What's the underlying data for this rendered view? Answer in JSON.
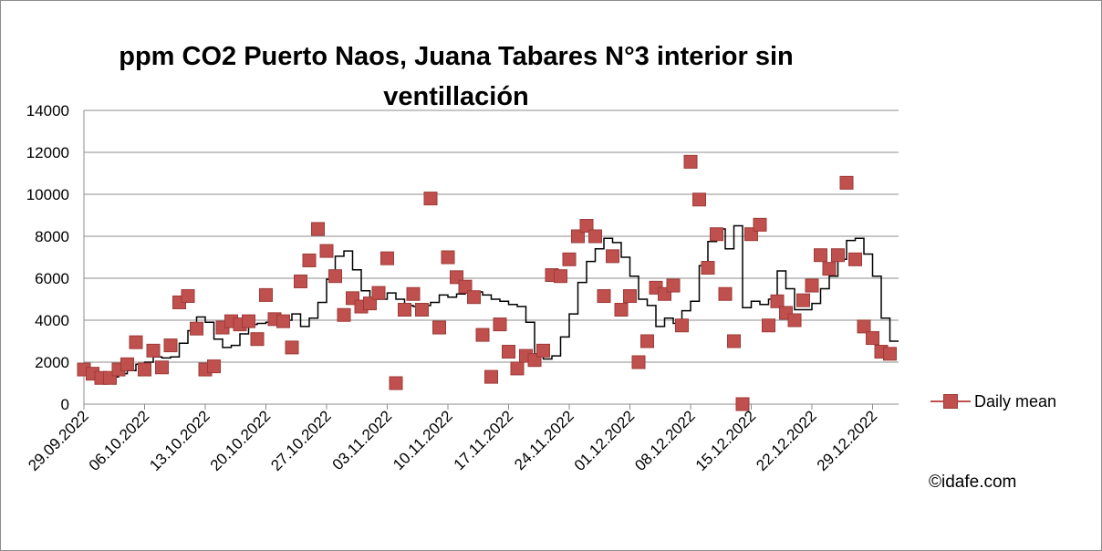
{
  "chart_data": {
    "type": "scatter",
    "title": "ppm CO2 Puerto Naos, Juana Tabares N°3 interior sin ventillación",
    "xlabel": "",
    "ylabel": "",
    "ylim": [
      0,
      14000
    ],
    "yticks": [
      0,
      2000,
      4000,
      6000,
      8000,
      10000,
      12000,
      14000
    ],
    "xlim": [
      "2022-09-29",
      "2023-01-01"
    ],
    "xticks": [
      "29.09.2022",
      "06.10.2022",
      "13.10.2022",
      "20.10.2022",
      "27.10.2022",
      "03.11.2022",
      "10.11.2022",
      "17.11.2022",
      "24.11.2022",
      "01.12.2022",
      "08.12.2022",
      "15.12.2022",
      "22.12.2022",
      "29.12.2022"
    ],
    "grid": "horizontal",
    "legend_position": "right",
    "series": [
      {
        "name": "Daily mean",
        "color": "#c0504d",
        "marker": "square",
        "points": [
          [
            "2022-09-29",
            1650
          ],
          [
            "2022-09-30",
            1450
          ],
          [
            "2022-10-01",
            1250
          ],
          [
            "2022-10-02",
            1250
          ],
          [
            "2022-10-03",
            1650
          ],
          [
            "2022-10-04",
            1900
          ],
          [
            "2022-10-05",
            2950
          ],
          [
            "2022-10-06",
            1650
          ],
          [
            "2022-10-07",
            2550
          ],
          [
            "2022-10-08",
            1750
          ],
          [
            "2022-10-09",
            2800
          ],
          [
            "2022-10-10",
            4850
          ],
          [
            "2022-10-11",
            5150
          ],
          [
            "2022-10-12",
            3600
          ],
          [
            "2022-10-13",
            1650
          ],
          [
            "2022-10-14",
            1800
          ],
          [
            "2022-10-15",
            3650
          ],
          [
            "2022-10-16",
            3950
          ],
          [
            "2022-10-17",
            3800
          ],
          [
            "2022-10-18",
            3950
          ],
          [
            "2022-10-19",
            3100
          ],
          [
            "2022-10-20",
            5200
          ],
          [
            "2022-10-21",
            4050
          ],
          [
            "2022-10-22",
            3950
          ],
          [
            "2022-10-23",
            2700
          ],
          [
            "2022-10-24",
            5850
          ],
          [
            "2022-10-25",
            6850
          ],
          [
            "2022-10-26",
            8350
          ],
          [
            "2022-10-27",
            7300
          ],
          [
            "2022-10-28",
            6100
          ],
          [
            "2022-10-29",
            4250
          ],
          [
            "2022-10-30",
            5050
          ],
          [
            "2022-10-31",
            4650
          ],
          [
            "2022-11-01",
            4800
          ],
          [
            "2022-11-02",
            5300
          ],
          [
            "2022-11-03",
            6950
          ],
          [
            "2022-11-04",
            1000
          ],
          [
            "2022-11-05",
            4500
          ],
          [
            "2022-11-06",
            5250
          ],
          [
            "2022-11-07",
            4500
          ],
          [
            "2022-11-08",
            9800
          ],
          [
            "2022-11-09",
            3650
          ],
          [
            "2022-11-10",
            7000
          ],
          [
            "2022-11-11",
            6050
          ],
          [
            "2022-11-12",
            5600
          ],
          [
            "2022-11-13",
            5100
          ],
          [
            "2022-11-14",
            3300
          ],
          [
            "2022-11-15",
            1300
          ],
          [
            "2022-11-16",
            3800
          ],
          [
            "2022-11-17",
            2500
          ],
          [
            "2022-11-18",
            1700
          ],
          [
            "2022-11-19",
            2300
          ],
          [
            "2022-11-20",
            2100
          ],
          [
            "2022-11-21",
            2550
          ],
          [
            "2022-11-22",
            6150
          ],
          [
            "2022-11-23",
            6100
          ],
          [
            "2022-11-24",
            6900
          ],
          [
            "2022-11-25",
            8000
          ],
          [
            "2022-11-26",
            8500
          ],
          [
            "2022-11-27",
            8000
          ],
          [
            "2022-11-28",
            5150
          ],
          [
            "2022-11-29",
            7050
          ],
          [
            "2022-11-30",
            4500
          ],
          [
            "2022-12-01",
            5150
          ],
          [
            "2022-12-02",
            2000
          ],
          [
            "2022-12-03",
            3000
          ],
          [
            "2022-12-04",
            5550
          ],
          [
            "2022-12-05",
            5250
          ],
          [
            "2022-12-06",
            5650
          ],
          [
            "2022-12-07",
            3750
          ],
          [
            "2022-12-08",
            11550
          ],
          [
            "2022-12-09",
            9750
          ],
          [
            "2022-12-10",
            6500
          ],
          [
            "2022-12-11",
            8100
          ],
          [
            "2022-12-12",
            5250
          ],
          [
            "2022-12-13",
            3000
          ],
          [
            "2022-12-14",
            0
          ],
          [
            "2022-12-15",
            8100
          ],
          [
            "2022-12-16",
            8550
          ],
          [
            "2022-12-17",
            3750
          ],
          [
            "2022-12-18",
            4900
          ],
          [
            "2022-12-19",
            4350
          ],
          [
            "2022-12-20",
            4000
          ],
          [
            "2022-12-21",
            4950
          ],
          [
            "2022-12-22",
            5650
          ],
          [
            "2022-12-23",
            7100
          ],
          [
            "2022-12-24",
            6450
          ],
          [
            "2022-12-25",
            7100
          ],
          [
            "2022-12-26",
            10550
          ],
          [
            "2022-12-27",
            6900
          ],
          [
            "2022-12-28",
            3700
          ],
          [
            "2022-12-29",
            3150
          ],
          [
            "2022-12-30",
            2500
          ],
          [
            "2022-12-31",
            2400
          ]
        ]
      },
      {
        "name": "",
        "color": "#000000",
        "marker": "none",
        "line": "step",
        "points": [
          [
            "2022-09-29",
            1700
          ],
          [
            "2022-09-30",
            1400
          ],
          [
            "2022-10-01",
            1300
          ],
          [
            "2022-10-02",
            1300
          ],
          [
            "2022-10-03",
            1450
          ],
          [
            "2022-10-04",
            1600
          ],
          [
            "2022-10-05",
            1900
          ],
          [
            "2022-10-06",
            2000
          ],
          [
            "2022-10-07",
            2250
          ],
          [
            "2022-10-08",
            2200
          ],
          [
            "2022-10-09",
            2250
          ],
          [
            "2022-10-10",
            2900
          ],
          [
            "2022-10-11",
            3500
          ],
          [
            "2022-10-12",
            4150
          ],
          [
            "2022-10-13",
            3900
          ],
          [
            "2022-10-14",
            3100
          ],
          [
            "2022-10-15",
            2700
          ],
          [
            "2022-10-16",
            2800
          ],
          [
            "2022-10-17",
            3350
          ],
          [
            "2022-10-18",
            3800
          ],
          [
            "2022-10-19",
            3850
          ],
          [
            "2022-10-20",
            3900
          ],
          [
            "2022-10-21",
            4050
          ],
          [
            "2022-10-22",
            4000
          ],
          [
            "2022-10-23",
            4300
          ],
          [
            "2022-10-24",
            3700
          ],
          [
            "2022-10-25",
            4100
          ],
          [
            "2022-10-26",
            4850
          ],
          [
            "2022-10-27",
            5950
          ],
          [
            "2022-10-28",
            7050
          ],
          [
            "2022-10-29",
            7300
          ],
          [
            "2022-10-30",
            6400
          ],
          [
            "2022-10-31",
            5400
          ],
          [
            "2022-11-01",
            5000
          ],
          [
            "2022-11-02",
            5000
          ],
          [
            "2022-11-03",
            5300
          ],
          [
            "2022-11-04",
            5000
          ],
          [
            "2022-11-05",
            4700
          ],
          [
            "2022-11-06",
            4650
          ],
          [
            "2022-11-07",
            4700
          ],
          [
            "2022-11-08",
            4850
          ],
          [
            "2022-11-09",
            5200
          ],
          [
            "2022-11-10",
            5100
          ],
          [
            "2022-11-11",
            5250
          ],
          [
            "2022-11-12",
            5300
          ],
          [
            "2022-11-13",
            5350
          ],
          [
            "2022-11-14",
            5200
          ],
          [
            "2022-11-15",
            5000
          ],
          [
            "2022-11-16",
            4900
          ],
          [
            "2022-11-17",
            4750
          ],
          [
            "2022-11-18",
            4650
          ],
          [
            "2022-11-19",
            3900
          ],
          [
            "2022-11-20",
            2400
          ],
          [
            "2022-11-21",
            2150
          ],
          [
            "2022-11-22",
            2300
          ],
          [
            "2022-11-23",
            3200
          ],
          [
            "2022-11-24",
            4300
          ],
          [
            "2022-11-25",
            5800
          ],
          [
            "2022-11-26",
            6800
          ],
          [
            "2022-11-27",
            7400
          ],
          [
            "2022-11-28",
            7900
          ],
          [
            "2022-11-29",
            7700
          ],
          [
            "2022-11-30",
            7000
          ],
          [
            "2022-12-01",
            6100
          ],
          [
            "2022-12-02",
            5000
          ],
          [
            "2022-12-03",
            4700
          ],
          [
            "2022-12-04",
            3700
          ],
          [
            "2022-12-05",
            4100
          ],
          [
            "2022-12-06",
            3850
          ],
          [
            "2022-12-07",
            4450
          ],
          [
            "2022-12-08",
            4900
          ],
          [
            "2022-12-09",
            6600
          ],
          [
            "2022-12-10",
            7750
          ],
          [
            "2022-12-11",
            8350
          ],
          [
            "2022-12-12",
            7400
          ],
          [
            "2022-12-13",
            8500
          ],
          [
            "2022-12-14",
            4600
          ],
          [
            "2022-12-15",
            4900
          ],
          [
            "2022-12-16",
            4750
          ],
          [
            "2022-12-17",
            5000
          ],
          [
            "2022-12-18",
            6350
          ],
          [
            "2022-12-19",
            5500
          ],
          [
            "2022-12-20",
            4500
          ],
          [
            "2022-12-21",
            4500
          ],
          [
            "2022-12-22",
            4800
          ],
          [
            "2022-12-23",
            5500
          ],
          [
            "2022-12-24",
            6100
          ],
          [
            "2022-12-25",
            6900
          ],
          [
            "2022-12-26",
            7800
          ],
          [
            "2022-12-27",
            7900
          ],
          [
            "2022-12-28",
            7150
          ],
          [
            "2022-12-29",
            6100
          ],
          [
            "2022-12-30",
            4100
          ],
          [
            "2022-12-31",
            3000
          ]
        ]
      }
    ]
  },
  "credit": "©idafe.com"
}
